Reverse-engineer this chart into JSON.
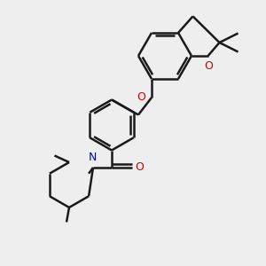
{
  "bg_color": "#eeeeee",
  "bond_color": "#1a1a1a",
  "oxygen_color": "#cc0000",
  "nitrogen_color": "#0000cc",
  "line_width": 1.8,
  "figsize": [
    3.0,
    3.0
  ],
  "dpi": 100,
  "xlim": [
    0,
    10
  ],
  "ylim": [
    0,
    10
  ]
}
